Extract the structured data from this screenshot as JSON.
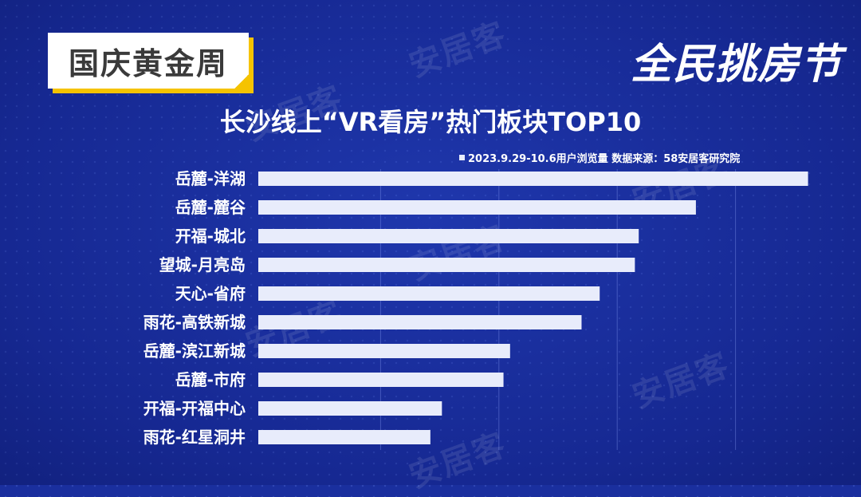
{
  "badge": {
    "text": "国庆黄金周"
  },
  "brand": {
    "text": "全民挑房节"
  },
  "watermark": "安居客",
  "chart_data": {
    "type": "bar",
    "orientation": "horizontal",
    "title": "长沙线上“VR看房”热门板块TOP10",
    "legend": "2023.9.29-10.6用户浏览量   数据来源：58安居客研究院",
    "legend_position": "top-right",
    "categories": [
      "岳麓-洋湖",
      "岳麓-麓谷",
      "开福-城北",
      "望城-月亮岛",
      "天心-省府",
      "雨花-高铁新城",
      "岳麓-滨江新城",
      "岳麓-市府",
      "开福-开福中心",
      "雨花-红星洞井"
    ],
    "values": [
      100,
      79.6,
      69.2,
      68.5,
      62.1,
      58.8,
      45.8,
      44.6,
      33.4,
      31.3
    ],
    "xlim": [
      0,
      107.6
    ],
    "grid": true,
    "bar_color": "#e8ecfb"
  }
}
